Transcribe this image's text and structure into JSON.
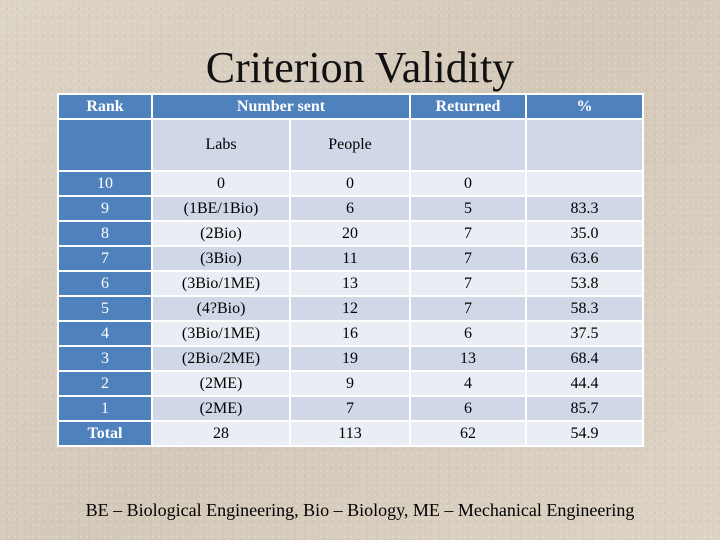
{
  "title": "Criterion Validity",
  "header": {
    "rank": "Rank",
    "number_sent": "Number sent",
    "returned": "Returned",
    "percent": "%",
    "labs": "Labs",
    "people": "People"
  },
  "rows": [
    {
      "rank": "10",
      "labs": "0",
      "people": "0",
      "returned": "0",
      "percent": ""
    },
    {
      "rank": "9",
      "labs": "(1BE/1Bio)",
      "people": "6",
      "returned": "5",
      "percent": "83.3"
    },
    {
      "rank": "8",
      "labs": "(2Bio)",
      "people": "20",
      "returned": "7",
      "percent": "35.0"
    },
    {
      "rank": "7",
      "labs": "(3Bio)",
      "people": "11",
      "returned": "7",
      "percent": "63.6"
    },
    {
      "rank": "6",
      "labs": "(3Bio/1ME)",
      "people": "13",
      "returned": "7",
      "percent": "53.8"
    },
    {
      "rank": "5",
      "labs": "(4?Bio)",
      "people": "12",
      "returned": "7",
      "percent": "58.3"
    },
    {
      "rank": "4",
      "labs": "(3Bio/1ME)",
      "people": "16",
      "returned": "6",
      "percent": "37.5"
    },
    {
      "rank": "3",
      "labs": "(2Bio/2ME)",
      "people": "19",
      "returned": "13",
      "percent": "68.4"
    },
    {
      "rank": "2",
      "labs": "(2ME)",
      "people": "9",
      "returned": "4",
      "percent": "44.4"
    },
    {
      "rank": "1",
      "labs": "(2ME)",
      "people": "7",
      "returned": "6",
      "percent": "85.7"
    }
  ],
  "total": {
    "rank": "Total",
    "labs": "28",
    "people": "113",
    "returned": "62",
    "percent": "54.9"
  },
  "footnote": "BE – Biological Engineering, Bio – Biology, ME – Mechanical Engineering"
}
